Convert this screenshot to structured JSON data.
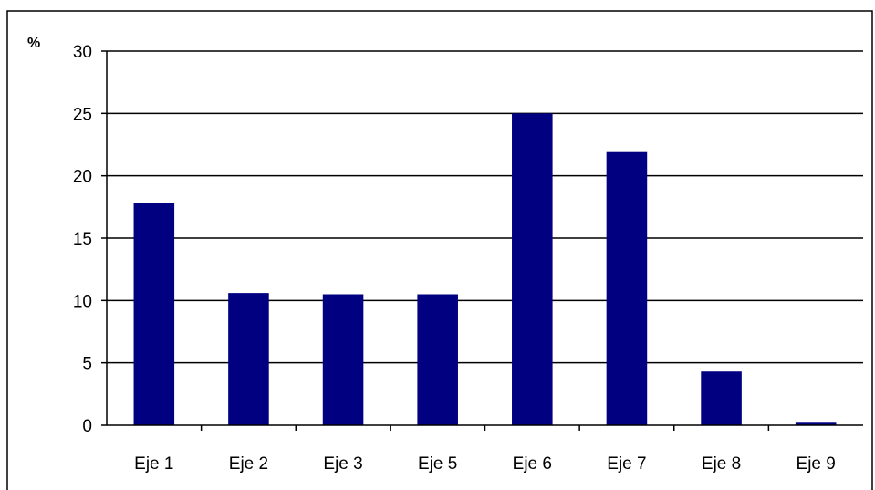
{
  "chart_data": {
    "type": "bar",
    "title": "",
    "xlabel": "",
    "ylabel": "%",
    "categories": [
      "Eje 1",
      "Eje 2",
      "Eje 3",
      "Eje 5",
      "Eje 6",
      "Eje 7",
      "Eje 8",
      "Eje 9"
    ],
    "values": [
      17.8,
      10.6,
      10.5,
      10.5,
      25.0,
      21.9,
      4.3,
      0.2
    ],
    "ylim": [
      0,
      30
    ],
    "yticks": [
      "0",
      "5",
      "10",
      "15",
      "20",
      "25",
      "30"
    ],
    "grid": true,
    "legend": "none",
    "colors": {
      "bar": "#000080",
      "gridline": "#000000",
      "frame": "#000000"
    }
  }
}
